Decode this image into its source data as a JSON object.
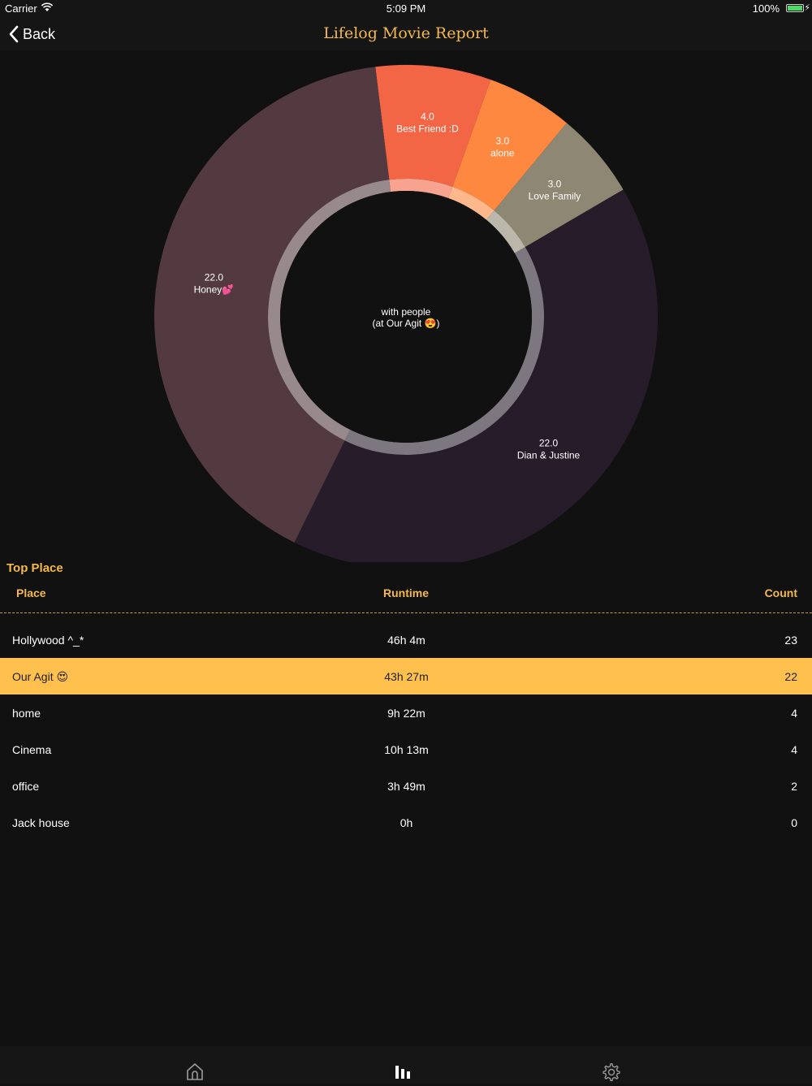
{
  "status_bar": {
    "carrier": "Carrier",
    "time": "5:09 PM",
    "battery": "100%"
  },
  "nav": {
    "back_label": "Back",
    "title": "Lifelog Movie Report"
  },
  "chart_data": {
    "type": "pie",
    "subtype": "donut",
    "center_label_line1": "with people",
    "center_label_line2": "(at Our Agit 😍)",
    "slices": [
      {
        "label": "Best Friend :D",
        "value": 4.0,
        "value_text": "4.0",
        "color": "#f26545"
      },
      {
        "label": "alone",
        "value": 3.0,
        "value_text": "3.0",
        "color": "#ff8840"
      },
      {
        "label": "Love Family",
        "value": 3.0,
        "value_text": "3.0",
        "color": "#8e8773"
      },
      {
        "label": "Dian & Justine",
        "value": 22.0,
        "value_text": "22.0",
        "color": "#271d2a"
      },
      {
        "label": "Honey💕",
        "value": 22.0,
        "value_text": "22.0",
        "color": "#533a40"
      }
    ]
  },
  "top_place": {
    "title": "Top Place",
    "headers": {
      "place": "Place",
      "runtime": "Runtime",
      "count": "Count"
    },
    "rows": [
      {
        "place": "Hollywood ^_*",
        "runtime": "46h 4m",
        "count": "23"
      },
      {
        "place": "Our Agit 😍",
        "runtime": "43h 27m",
        "count": "22",
        "selected": true
      },
      {
        "place": "home",
        "runtime": "9h 22m",
        "count": "4"
      },
      {
        "place": "Cinema",
        "runtime": "10h 13m",
        "count": "4"
      },
      {
        "place": "office",
        "runtime": "3h 49m",
        "count": "2"
      },
      {
        "place": "Jack house",
        "runtime": "0h",
        "count": "0"
      }
    ]
  },
  "tab_bar": {
    "items": [
      {
        "icon": "home-icon",
        "active": false
      },
      {
        "icon": "chart-icon",
        "active": true
      },
      {
        "icon": "gear-icon",
        "active": false
      }
    ]
  },
  "colors": {
    "accent": "#f5b84a",
    "selected_row": "#ffc04d",
    "background": "#111111"
  }
}
